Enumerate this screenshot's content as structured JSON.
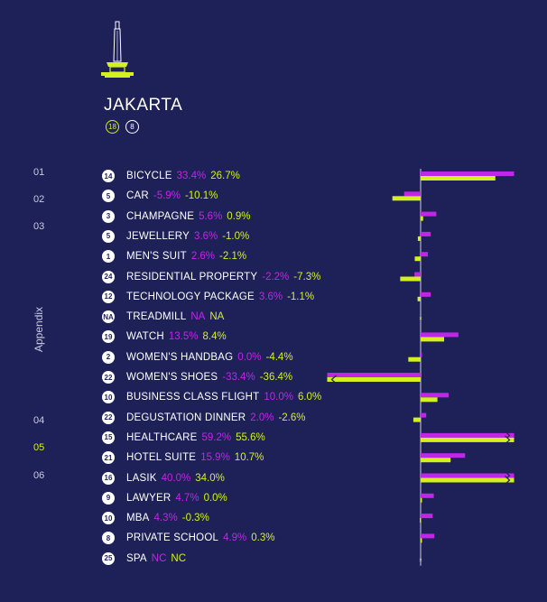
{
  "city": {
    "title": "JAKARTA",
    "badge_a": "18",
    "badge_b": "8"
  },
  "nav": {
    "items": [
      "01",
      "02",
      "03",
      "04",
      "05",
      "06"
    ],
    "appendix": "Appendix",
    "active": "05"
  },
  "colors": {
    "background": "#1e2158",
    "series_1": "#c026e6",
    "series_2": "#d4f01e",
    "text": "#ffffff",
    "nav_active": "#d4f01e"
  },
  "chart_data": {
    "type": "bar",
    "orientation": "horizontal",
    "series": [
      {
        "values": [
          33.4,
          -5.9,
          5.6,
          3.6,
          2.6,
          -2.2,
          3.6,
          null,
          13.5,
          0.0,
          -33.4,
          10.0,
          2.0,
          59.2,
          15.9,
          40.0,
          4.7,
          4.3,
          4.9,
          null
        ],
        "color": "#c026e6"
      },
      {
        "values": [
          26.7,
          -10.1,
          0.9,
          -1.0,
          -2.1,
          -7.3,
          -1.1,
          null,
          8.4,
          -4.4,
          -36.4,
          6.0,
          -2.6,
          55.6,
          10.7,
          34.0,
          0.0,
          -0.3,
          0.3,
          null
        ],
        "color": "#d4f01e"
      }
    ],
    "clipped_max": 33.4,
    "rows": [
      {
        "rank": "14",
        "label": "BICYCLE",
        "v1": "33.4%",
        "v2": "26.7%"
      },
      {
        "rank": "5",
        "label": "CAR",
        "v1": "-5.9%",
        "v2": "-10.1%"
      },
      {
        "rank": "3",
        "label": "CHAMPAGNE",
        "v1": "5.6%",
        "v2": "0.9%"
      },
      {
        "rank": "5",
        "label": "JEWELLERY",
        "v1": "3.6%",
        "v2": "-1.0%"
      },
      {
        "rank": "1",
        "label": "MEN'S SUIT",
        "v1": "2.6%",
        "v2": "-2.1%"
      },
      {
        "rank": "24",
        "label": "RESIDENTIAL PROPERTY",
        "v1": "-2.2%",
        "v2": "-7.3%"
      },
      {
        "rank": "12",
        "label": "TECHNOLOGY PACKAGE",
        "v1": "3.6%",
        "v2": "-1.1%"
      },
      {
        "rank": "NA",
        "label": "TREADMILL",
        "v1": "NA",
        "v2": "NA"
      },
      {
        "rank": "19",
        "label": "WATCH",
        "v1": "13.5%",
        "v2": "8.4%"
      },
      {
        "rank": "2",
        "label": "WOMEN'S HANDBAG",
        "v1": "0.0%",
        "v2": "-4.4%"
      },
      {
        "rank": "22",
        "label": "WOMEN'S SHOES",
        "v1": "-33.4%",
        "v2": "-36.4%"
      },
      {
        "rank": "10",
        "label": "BUSINESS CLASS FLIGHT",
        "v1": "10.0%",
        "v2": "6.0%"
      },
      {
        "rank": "22",
        "label": "DEGUSTATION DINNER",
        "v1": "2.0%",
        "v2": "-2.6%"
      },
      {
        "rank": "15",
        "label": "HEALTHCARE",
        "v1": "59.2%",
        "v2": "55.6%"
      },
      {
        "rank": "21",
        "label": "HOTEL SUITE",
        "v1": "15.9%",
        "v2": "10.7%"
      },
      {
        "rank": "16",
        "label": "LASIK",
        "v1": "40.0%",
        "v2": "34.0%"
      },
      {
        "rank": "9",
        "label": "LAWYER",
        "v1": "4.7%",
        "v2": "0.0%"
      },
      {
        "rank": "10",
        "label": "MBA",
        "v1": "4.3%",
        "v2": "-0.3%"
      },
      {
        "rank": "8",
        "label": "PRIVATE SCHOOL",
        "v1": "4.9%",
        "v2": "0.3%"
      },
      {
        "rank": "25",
        "label": "SPA",
        "v1": "NC",
        "v2": "NC"
      }
    ]
  }
}
